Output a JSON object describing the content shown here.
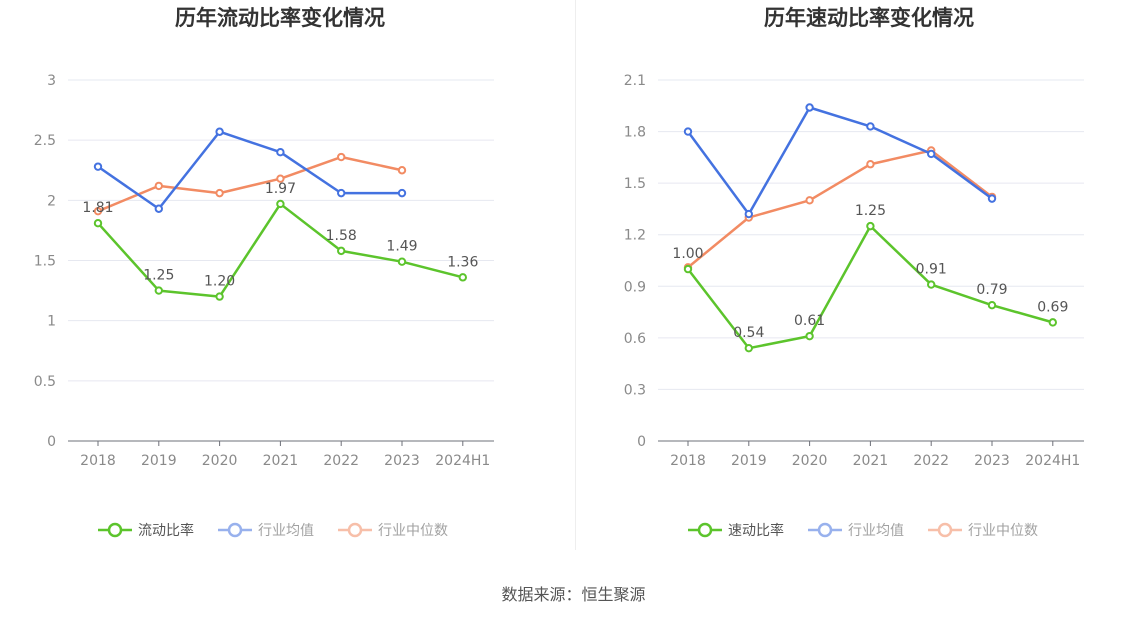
{
  "source": "数据来源：恒生聚源",
  "colors": {
    "main": "#5cc42c",
    "avg": "#4472e0",
    "median": "#f28b63"
  },
  "chart_data": [
    {
      "type": "line",
      "title": "历年流动比率变化情况",
      "categories": [
        "2018",
        "2019",
        "2020",
        "2021",
        "2022",
        "2023",
        "2024H1"
      ],
      "ylim": [
        0,
        3
      ],
      "yticks": [
        "0",
        "0.5",
        "1",
        "1.5",
        "2",
        "2.5",
        "3"
      ],
      "ytick_values": [
        0,
        0.5,
        1,
        1.5,
        2,
        2.5,
        3
      ],
      "grid": true,
      "legend_position": "bottom",
      "series": [
        {
          "name": "流动比率",
          "values": [
            1.81,
            1.25,
            1.2,
            1.97,
            1.58,
            1.49,
            1.36
          ],
          "labels": [
            "1.81",
            "1.25",
            "1.20",
            "1.97",
            "1.58",
            "1.49",
            "1.36"
          ]
        },
        {
          "name": "行业均值",
          "values": [
            2.28,
            1.93,
            2.57,
            2.4,
            2.06,
            2.06,
            null
          ]
        },
        {
          "name": "行业中位数",
          "values": [
            1.91,
            2.12,
            2.06,
            2.18,
            2.36,
            2.25,
            null
          ]
        }
      ]
    },
    {
      "type": "line",
      "title": "历年速动比率变化情况",
      "categories": [
        "2018",
        "2019",
        "2020",
        "2021",
        "2022",
        "2023",
        "2024H1"
      ],
      "ylim": [
        0,
        2.1
      ],
      "yticks": [
        "0",
        "0.3",
        "0.6",
        "0.9",
        "1.2",
        "1.5",
        "1.8",
        "2.1"
      ],
      "ytick_values": [
        0,
        0.3,
        0.6,
        0.9,
        1.2,
        1.5,
        1.8,
        2.1
      ],
      "grid": true,
      "legend_position": "bottom",
      "series": [
        {
          "name": "速动比率",
          "values": [
            1.0,
            0.54,
            0.61,
            1.25,
            0.91,
            0.79,
            0.69
          ],
          "labels": [
            "1.00",
            "0.54",
            "0.61",
            "1.25",
            "0.91",
            "0.79",
            "0.69"
          ]
        },
        {
          "name": "行业均值",
          "values": [
            1.8,
            1.32,
            1.94,
            1.83,
            1.67,
            1.41,
            null
          ]
        },
        {
          "name": "行业中位数",
          "values": [
            1.01,
            1.3,
            1.4,
            1.61,
            1.69,
            1.42,
            null
          ]
        }
      ]
    }
  ]
}
